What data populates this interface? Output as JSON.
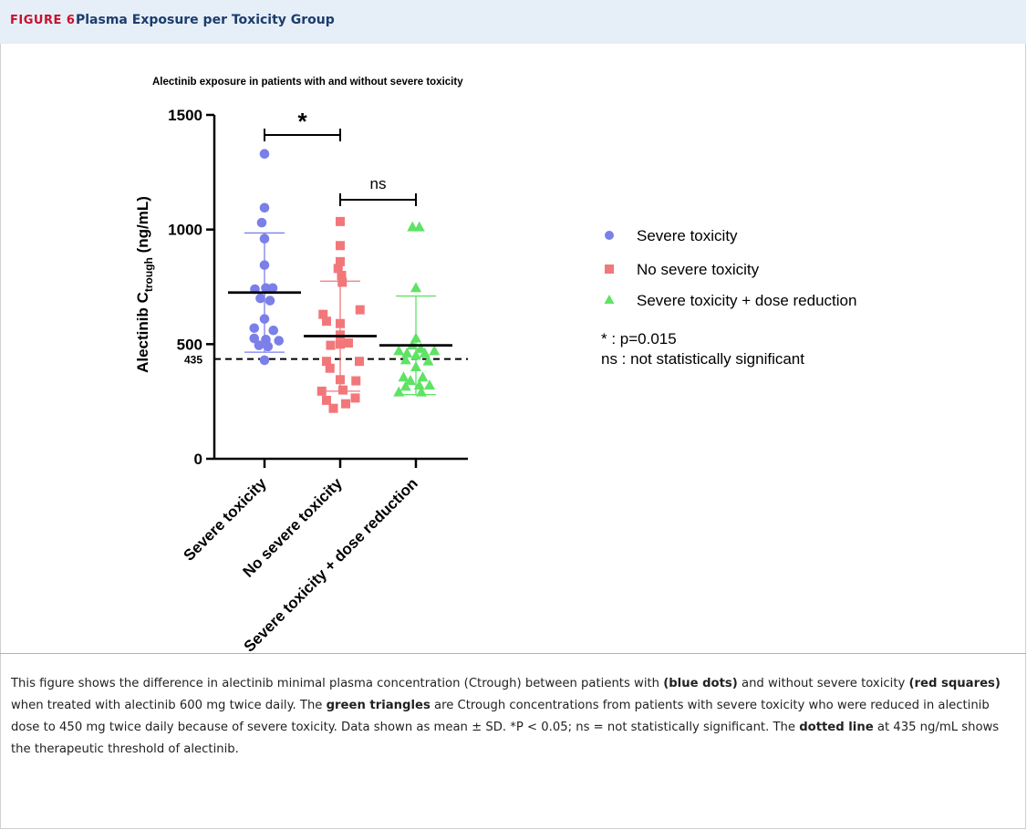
{
  "figure": {
    "label": "FIGURE 6",
    "title": "Plasma Exposure per Toxicity Group"
  },
  "caption": {
    "t1": "This figure shows the difference in alectinib minimal plasma concentration (Ctrough) between patients with ",
    "b1": "(blue dots)",
    "t2": " and without severe toxicity ",
    "b2": "(red squares)",
    "t3": " when treated with alectinib 600 mg twice daily. The ",
    "b3": "green triangles",
    "t4": " are Ctrough concentrations from patients with severe toxicity who were reduced in alectinib dose to 450 mg twice daily because of severe toxicity. Data shown as mean ± SD. *P < 0.05; ns = not statistically significant. The ",
    "b4": "dotted line",
    "t5": " at 435 ng/mL shows the therapeutic threshold of alectinib."
  },
  "chart_data": {
    "type": "scatter",
    "title": "Alectinib exposure in patients with and without severe toxicity",
    "ylabel_main": "Alectinib C",
    "ylabel_sub": "trough",
    "ylabel_unit": " (ng/mL)",
    "ylim": [
      0,
      1500
    ],
    "yticks": [
      "0",
      "500",
      "1000",
      "1500"
    ],
    "threshold": {
      "value": 435,
      "label": "435"
    },
    "categories": [
      "Severe toxicity",
      "No severe toxicity",
      "Severe toxicity + dose reduction"
    ],
    "series": [
      {
        "name": "Severe toxicity",
        "marker": "circle",
        "color": "#7b7fe8",
        "mean": 725,
        "sd": 260,
        "points": [
          [
            0,
            1330
          ],
          [
            0,
            1095
          ],
          [
            -0.04,
            1030
          ],
          [
            0,
            960
          ],
          [
            0,
            845
          ],
          [
            -0.14,
            740
          ],
          [
            0.02,
            745
          ],
          [
            0.12,
            745
          ],
          [
            -0.06,
            700
          ],
          [
            0.08,
            690
          ],
          [
            0,
            610
          ],
          [
            -0.15,
            570
          ],
          [
            0.13,
            560
          ],
          [
            -0.15,
            525
          ],
          [
            0.02,
            520
          ],
          [
            0.21,
            515
          ],
          [
            -0.08,
            495
          ],
          [
            0.05,
            490
          ],
          [
            0,
            430
          ]
        ]
      },
      {
        "name": "No severe toxicity",
        "marker": "square",
        "color": "#f2777a",
        "mean": 535,
        "sd": 240,
        "points": [
          [
            0,
            1035
          ],
          [
            0,
            930
          ],
          [
            0,
            860
          ],
          [
            -0.03,
            830
          ],
          [
            0.02,
            800
          ],
          [
            0.03,
            770
          ],
          [
            -0.25,
            630
          ],
          [
            -0.2,
            600
          ],
          [
            0.29,
            650
          ],
          [
            0,
            590
          ],
          [
            0,
            540
          ],
          [
            0,
            500
          ],
          [
            0.12,
            505
          ],
          [
            -0.14,
            495
          ],
          [
            -0.2,
            425
          ],
          [
            0.28,
            425
          ],
          [
            -0.15,
            395
          ],
          [
            0,
            345
          ],
          [
            0.23,
            340
          ],
          [
            -0.27,
            295
          ],
          [
            0.04,
            300
          ],
          [
            -0.2,
            255
          ],
          [
            0.22,
            265
          ],
          [
            0.08,
            240
          ],
          [
            -0.1,
            220
          ]
        ]
      },
      {
        "name": "Severe toxicity + dose reduction",
        "marker": "triangle",
        "color": "#5ee365",
        "mean": 495,
        "sd": 215,
        "points": [
          [
            -0.05,
            1010
          ],
          [
            0.05,
            1010
          ],
          [
            0,
            745
          ],
          [
            0,
            525
          ],
          [
            -0.05,
            495
          ],
          [
            0.07,
            480
          ],
          [
            -0.25,
            470
          ],
          [
            0.27,
            470
          ],
          [
            -0.13,
            460
          ],
          [
            0.13,
            460
          ],
          [
            0,
            450
          ],
          [
            -0.15,
            430
          ],
          [
            0.18,
            425
          ],
          [
            0,
            400
          ],
          [
            -0.18,
            355
          ],
          [
            0.1,
            355
          ],
          [
            -0.08,
            340
          ],
          [
            0.05,
            320
          ],
          [
            -0.15,
            315
          ],
          [
            0.2,
            320
          ],
          [
            -0.25,
            290
          ],
          [
            0.08,
            290
          ]
        ]
      }
    ],
    "significance": [
      {
        "from": 0,
        "to": 1,
        "label": "*"
      },
      {
        "from": 1,
        "to": 2,
        "label": "ns"
      }
    ],
    "legend_position": "right",
    "notes": [
      "* : p=0.015",
      "ns : not statistically significant"
    ]
  }
}
